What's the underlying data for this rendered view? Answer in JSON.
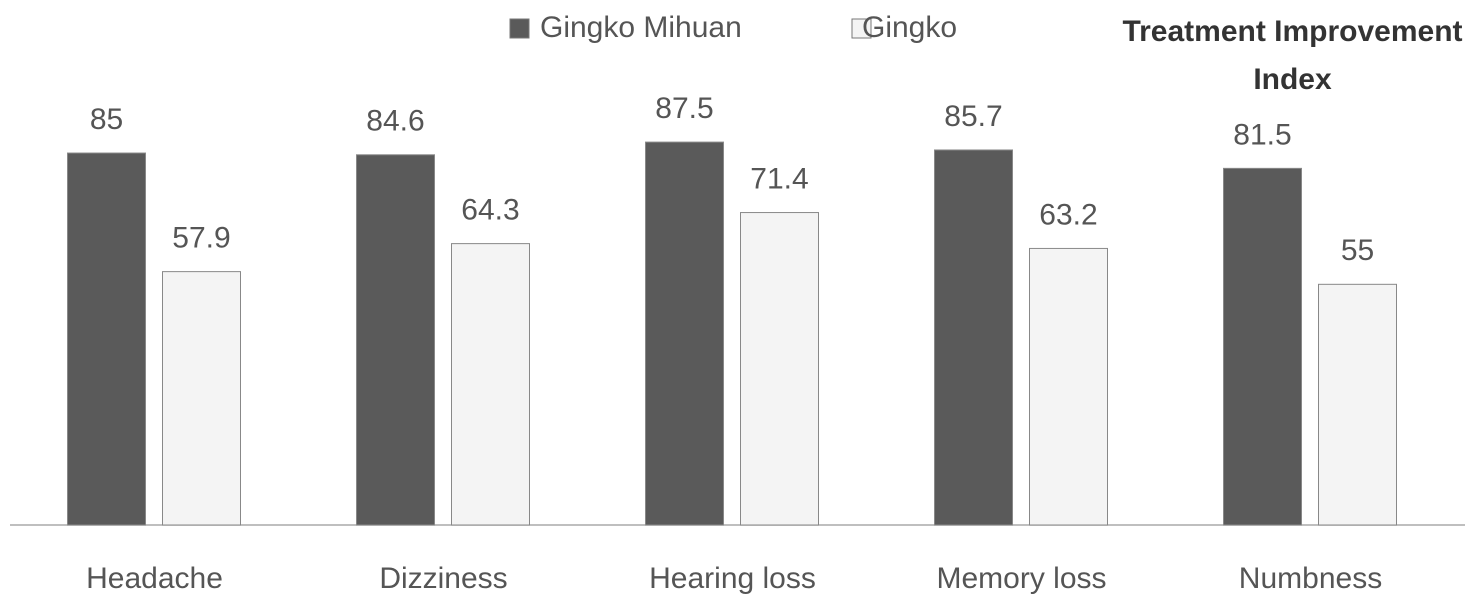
{
  "chart_data": {
    "type": "bar",
    "title": "Treatment Improvement Index",
    "categories": [
      "Headache",
      "Dizziness",
      "Hearing loss",
      "Memory loss",
      "Numbness"
    ],
    "series": [
      {
        "name": "Gingko Mihuan",
        "color": "#5a5a5a",
        "values": [
          85,
          84.6,
          87.5,
          85.7,
          81.5
        ]
      },
      {
        "name": "Gingko",
        "color": "#f4f4f4",
        "values": [
          57.9,
          64.3,
          71.4,
          63.2,
          55
        ]
      }
    ],
    "ylim": [
      0,
      100
    ],
    "legend": "top"
  }
}
